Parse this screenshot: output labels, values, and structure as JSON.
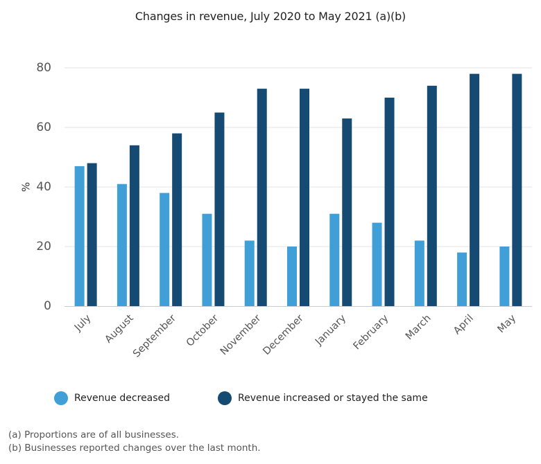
{
  "chart_data": {
    "type": "bar",
    "title": "Changes in revenue, July 2020 to May 2021 (a)(b)",
    "xlabel": "",
    "ylabel": "%",
    "ylim": [
      0,
      80
    ],
    "yticks": [
      0,
      20,
      40,
      60,
      80
    ],
    "grid": true,
    "legend_position": "bottom",
    "categories": [
      "July",
      "August",
      "September",
      "October",
      "November",
      "December",
      "January",
      "February",
      "March",
      "April",
      "May"
    ],
    "series": [
      {
        "name": "Revenue decreased",
        "color": "#3f9fd6",
        "values": [
          47,
          41,
          38,
          31,
          22,
          20,
          31,
          28,
          22,
          18,
          20
        ]
      },
      {
        "name": "Revenue increased or stayed the same",
        "color": "#154a72",
        "values": [
          48,
          54,
          58,
          65,
          73,
          73,
          63,
          70,
          74,
          78,
          78
        ]
      }
    ],
    "footnotes": [
      "(a) Proportions are of all businesses.",
      "(b) Businesses reported changes over the last month."
    ]
  },
  "colors": {
    "gridline": "#e3e3e3",
    "axis": "#c8ccd2"
  }
}
